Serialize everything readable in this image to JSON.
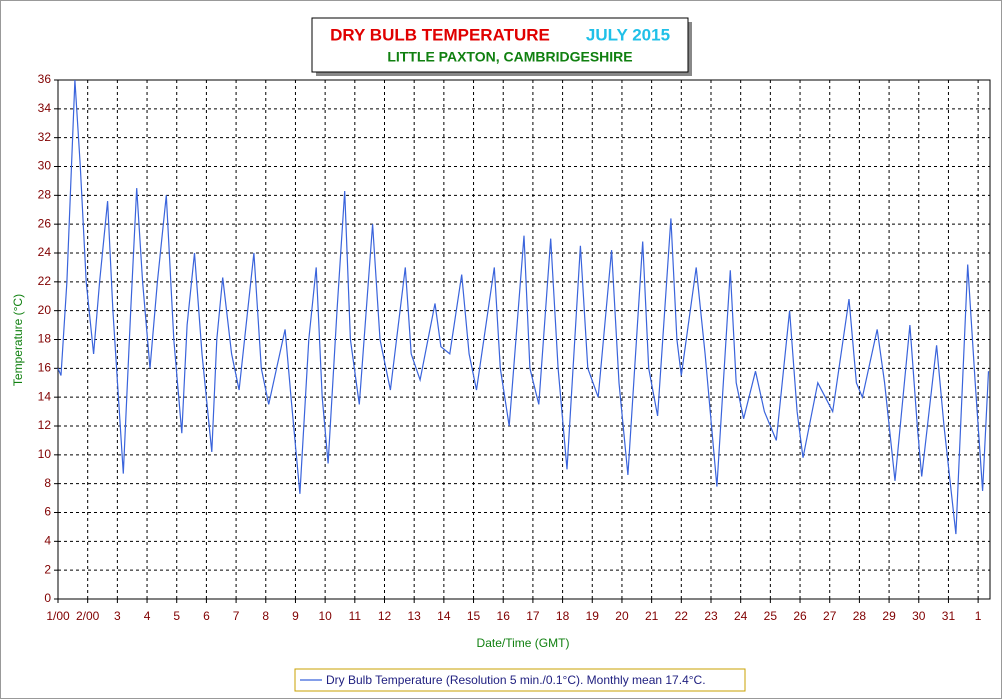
{
  "chart_data": {
    "type": "line",
    "title": "DRY BULB TEMPERATURE",
    "title_period": "JULY 2015",
    "subtitle": "LITTLE PAXTON, CAMBRIDGESHIRE",
    "x_label": "Date/Time (GMT)",
    "y_label": "Temperature (°C)",
    "xlim": [
      1,
      32.4
    ],
    "ylim": [
      0,
      36
    ],
    "xticks": [
      {
        "value": 1,
        "label": "1/00"
      },
      {
        "value": 2,
        "label": "2/00"
      },
      3,
      4,
      5,
      6,
      7,
      8,
      9,
      10,
      11,
      12,
      13,
      14,
      15,
      16,
      17,
      18,
      19,
      20,
      21,
      22,
      23,
      24,
      25,
      26,
      27,
      28,
      29,
      30,
      31,
      {
        "value": 32,
        "label": "1"
      }
    ],
    "yticks": [
      0,
      2,
      4,
      6,
      8,
      10,
      12,
      14,
      16,
      18,
      20,
      22,
      24,
      26,
      28,
      30,
      32,
      34,
      36
    ],
    "grid": true,
    "x": [
      1.0,
      1.1,
      1.3,
      1.57,
      1.75,
      1.95,
      2.2,
      2.4,
      2.67,
      2.85,
      3.2,
      3.45,
      3.65,
      3.85,
      4.1,
      4.35,
      4.65,
      4.9,
      5.17,
      5.35,
      5.6,
      5.85,
      6.18,
      6.35,
      6.55,
      6.85,
      7.1,
      7.6,
      7.85,
      8.1,
      8.65,
      8.85,
      9.15,
      9.45,
      9.7,
      9.9,
      10.1,
      10.4,
      10.66,
      10.85,
      11.15,
      11.6,
      11.85,
      12.2,
      12.7,
      12.9,
      13.2,
      13.7,
      13.9,
      14.2,
      14.6,
      14.85,
      15.1,
      15.7,
      15.9,
      16.2,
      16.7,
      16.9,
      17.2,
      17.6,
      17.85,
      18.15,
      18.6,
      18.85,
      19.2,
      19.65,
      19.9,
      20.2,
      20.7,
      20.9,
      21.2,
      21.65,
      21.85,
      22.0,
      22.5,
      22.8,
      23.2,
      23.65,
      23.85,
      24.1,
      24.5,
      24.8,
      25.2,
      25.65,
      25.9,
      26.1,
      26.6,
      26.85,
      27.1,
      27.65,
      27.9,
      28.1,
      28.6,
      28.85,
      29.2,
      29.7,
      29.95,
      30.1,
      30.6,
      30.85,
      31.25,
      31.65,
      31.9,
      32.15,
      32.35
    ],
    "series": [
      {
        "name": "Dry Bulb Temperature (Resolution 5 min./0.1°C). Monthly mean 17.4°C.",
        "color": "#3a64dc",
        "values": [
          16,
          15.5,
          22,
          36,
          30,
          22,
          17,
          22,
          27.6,
          20,
          8.7,
          20,
          28.5,
          22,
          16,
          22,
          28,
          18,
          11.5,
          19,
          24,
          17,
          10.2,
          18,
          22.3,
          17,
          14.5,
          24,
          16,
          13.5,
          18.7,
          14,
          7.3,
          18,
          23,
          14,
          9.4,
          20,
          28.3,
          18,
          13.5,
          26,
          18,
          14.5,
          23,
          17,
          15.2,
          20.5,
          17.5,
          17,
          22.5,
          17,
          14.5,
          23,
          16,
          12,
          25.2,
          16,
          13.5,
          25,
          16,
          9,
          24.5,
          16,
          14,
          24.2,
          15,
          8.6,
          24.8,
          16,
          12.7,
          26.4,
          18,
          15.5,
          23,
          17,
          7.8,
          22.8,
          15,
          12.5,
          15.8,
          13,
          11,
          20,
          13,
          9.8,
          15,
          14,
          13,
          20.8,
          15,
          14,
          18.7,
          15,
          8.2,
          19,
          12,
          8.5,
          17.6,
          12,
          4.5,
          23.2,
          15,
          7.5,
          15.8
        ]
      }
    ]
  }
}
